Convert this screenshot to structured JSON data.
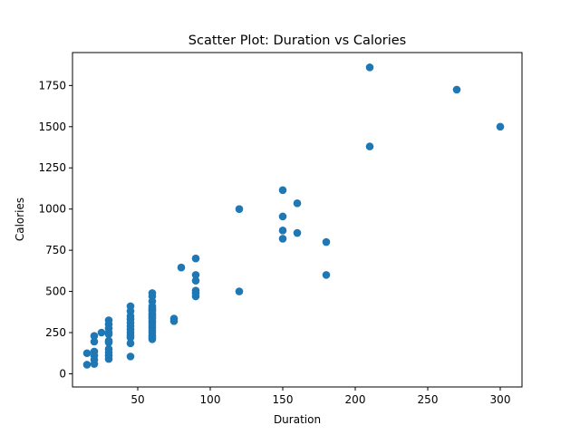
{
  "chart_data": {
    "type": "scatter",
    "title": "Scatter Plot: Duration vs Calories",
    "xlabel": "Duration",
    "ylabel": "Calories",
    "xlim": [
      5,
      315
    ],
    "ylim": [
      -80,
      1950
    ],
    "xticks": [
      50,
      100,
      150,
      200,
      250,
      300
    ],
    "yticks": [
      0,
      250,
      500,
      750,
      1000,
      1250,
      1500,
      1750
    ],
    "grid": false,
    "color": "#1f77b4",
    "points": [
      [
        15,
        125
      ],
      [
        15,
        55
      ],
      [
        20,
        230
      ],
      [
        20,
        195
      ],
      [
        20,
        135
      ],
      [
        20,
        110
      ],
      [
        20,
        85
      ],
      [
        20,
        60
      ],
      [
        25,
        250
      ],
      [
        30,
        325
      ],
      [
        30,
        300
      ],
      [
        30,
        275
      ],
      [
        30,
        250
      ],
      [
        30,
        240
      ],
      [
        30,
        200
      ],
      [
        30,
        190
      ],
      [
        30,
        150
      ],
      [
        30,
        130
      ],
      [
        30,
        110
      ],
      [
        30,
        90
      ],
      [
        45,
        410
      ],
      [
        45,
        380
      ],
      [
        45,
        350
      ],
      [
        45,
        330
      ],
      [
        45,
        310
      ],
      [
        45,
        290
      ],
      [
        45,
        270
      ],
      [
        45,
        250
      ],
      [
        45,
        235
      ],
      [
        45,
        220
      ],
      [
        45,
        185
      ],
      [
        45,
        105
      ],
      [
        60,
        490
      ],
      [
        60,
        470
      ],
      [
        60,
        440
      ],
      [
        60,
        410
      ],
      [
        60,
        400
      ],
      [
        60,
        390
      ],
      [
        60,
        380
      ],
      [
        60,
        365
      ],
      [
        60,
        355
      ],
      [
        60,
        345
      ],
      [
        60,
        335
      ],
      [
        60,
        320
      ],
      [
        60,
        310
      ],
      [
        60,
        295
      ],
      [
        60,
        280
      ],
      [
        60,
        265
      ],
      [
        60,
        250
      ],
      [
        60,
        235
      ],
      [
        60,
        220
      ],
      [
        60,
        210
      ],
      [
        75,
        335
      ],
      [
        75,
        320
      ],
      [
        80,
        645
      ],
      [
        90,
        700
      ],
      [
        90,
        600
      ],
      [
        90,
        565
      ],
      [
        90,
        505
      ],
      [
        90,
        490
      ],
      [
        90,
        470
      ],
      [
        120,
        1000
      ],
      [
        120,
        500
      ],
      [
        150,
        1115
      ],
      [
        150,
        955
      ],
      [
        150,
        870
      ],
      [
        150,
        820
      ],
      [
        160,
        1035
      ],
      [
        160,
        855
      ],
      [
        180,
        800
      ],
      [
        180,
        600
      ],
      [
        210,
        1860
      ],
      [
        210,
        1380
      ],
      [
        270,
        1725
      ],
      [
        300,
        1500
      ]
    ]
  }
}
